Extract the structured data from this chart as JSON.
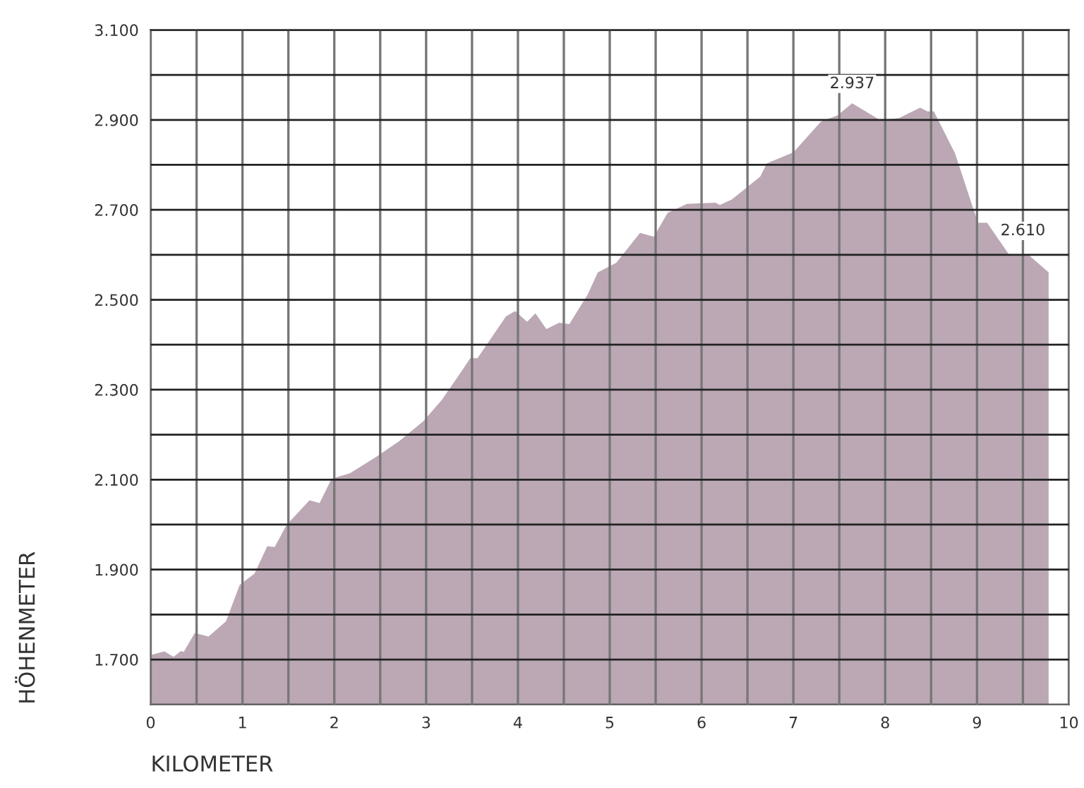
{
  "chart_data": {
    "type": "area",
    "xlabel": "KILOMETER",
    "ylabel": "HÖHENMETER",
    "x": [
      0,
      0.15,
      0.25,
      0.33,
      0.36,
      0.48,
      0.63,
      0.82,
      0.97,
      1.13,
      1.27,
      1.35,
      1.48,
      1.73,
      1.84,
      1.97,
      2.17,
      2.46,
      2.71,
      2.97,
      3.17,
      3.38,
      3.48,
      3.56,
      3.87,
      3.97,
      4.1,
      4.19,
      4.31,
      4.45,
      4.56,
      4.76,
      4.87,
      5.07,
      5.33,
      5.48,
      5.63,
      5.84,
      6.15,
      6.2,
      6.33,
      6.64,
      6.71,
      7.0,
      7.3,
      7.48,
      7.64,
      7.94,
      8.15,
      8.38,
      8.46,
      8.53,
      8.76,
      9.01,
      9.11,
      9.35,
      9.56,
      9.78
    ],
    "series": [
      {
        "color": "#bba8b4",
        "values": [
          1710,
          1718,
          1706,
          1719,
          1717,
          1759,
          1751,
          1785,
          1866,
          1891,
          1952,
          1950,
          1999,
          2054,
          2048,
          2102,
          2114,
          2151,
          2186,
          2230,
          2277,
          2339,
          2370,
          2370,
          2463,
          2475,
          2451,
          2470,
          2435,
          2449,
          2446,
          2512,
          2561,
          2582,
          2649,
          2640,
          2693,
          2713,
          2716,
          2711,
          2723,
          2774,
          2803,
          2828,
          2896,
          2910,
          2937,
          2900,
          2904,
          2927,
          2919,
          2919,
          2826,
          2671,
          2671,
          2600,
          2600,
          2561
        ]
      }
    ],
    "xlim": [
      0,
      10
    ],
    "xticks": [
      0,
      {
        "value": 0.5,
        "label": null
      },
      1,
      {
        "value": 1.5,
        "label": null
      },
      2,
      {
        "value": 2.5,
        "label": null
      },
      3,
      {
        "value": 3.5,
        "label": null
      },
      4,
      {
        "value": 4.5,
        "label": null
      },
      5,
      {
        "value": 5.5,
        "label": null
      },
      6,
      {
        "value": 6.5,
        "label": null
      },
      7,
      {
        "value": 7.5,
        "label": null
      },
      8,
      {
        "value": 8.5,
        "label": null
      },
      9,
      {
        "value": 9.5,
        "label": null
      },
      10
    ],
    "ylim": [
      1600,
      3100
    ],
    "yticks": [
      {
        "value": 1700,
        "label": "1.700"
      },
      {
        "value": 1800,
        "label": null
      },
      {
        "value": 1900,
        "label": "1.900"
      },
      {
        "value": 2000,
        "label": null
      },
      {
        "value": 2100,
        "label": "2.100"
      },
      {
        "value": 2200,
        "label": null
      },
      {
        "value": 2300,
        "label": "2.300"
      },
      {
        "value": 2400,
        "label": null
      },
      {
        "value": 2500,
        "label": "2.500"
      },
      {
        "value": 2600,
        "label": null
      },
      {
        "value": 2700,
        "label": "2.700"
      },
      {
        "value": 2800,
        "label": null
      },
      {
        "value": 2900,
        "label": "2.900"
      },
      {
        "value": 3000,
        "label": null
      },
      {
        "value": 3100,
        "label": "3.100"
      }
    ],
    "grid": true,
    "annotations": [
      {
        "text": "2.937",
        "x": 7.64,
        "y": 2937
      },
      {
        "text": "2.610",
        "x": 9.5,
        "y": 2610
      }
    ]
  }
}
